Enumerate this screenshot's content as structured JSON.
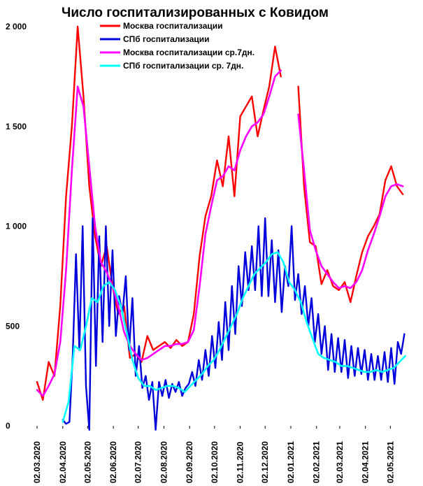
{
  "chart_data": {
    "type": "line",
    "title": "Число госпитализированных с Ковидом",
    "ylim": [
      0,
      2000
    ],
    "y_ticks": [
      {
        "value": 0,
        "label": "0"
      },
      {
        "value": 500,
        "label": "500"
      },
      {
        "value": 1000,
        "label": "1 000"
      },
      {
        "value": 1500,
        "label": "1 500"
      },
      {
        "value": 2000,
        "label": "2 000"
      }
    ],
    "x_ticks": [
      "02.03.2020",
      "02.04.2020",
      "02.05.2020",
      "02.06.2020",
      "02.07.2020",
      "02.08.2020",
      "02.09.2020",
      "02.10.2020",
      "02.11.2020",
      "02.12.2020",
      "02.01.2021",
      "02.02.2021",
      "02.03.2021",
      "02.04.2021",
      "02.05.2021"
    ],
    "grid": false,
    "legend_position": "top",
    "series": [
      {
        "name": "Москва госпитализации",
        "color": "#ff0000",
        "x": [
          "02.03.2020",
          "09.03.2020",
          "16.03.2020",
          "23.03.2020",
          "30.03.2020",
          "06.04.2020",
          "13.04.2020",
          "20.04.2020",
          "27.04.2020",
          "04.05.2020",
          "11.05.2020",
          "18.05.2020",
          "25.05.2020",
          "01.06.2020",
          "08.06.2020",
          "15.06.2020",
          "22.06.2020",
          "29.06.2020",
          "06.07.2020",
          "13.07.2020",
          "20.07.2020",
          "27.07.2020",
          "03.08.2020",
          "10.08.2020",
          "17.08.2020",
          "24.08.2020",
          "31.08.2020",
          "07.09.2020",
          "14.09.2020",
          "21.09.2020",
          "28.09.2020",
          "05.10.2020",
          "12.10.2020",
          "19.10.2020",
          "26.10.2020",
          "02.11.2020",
          "09.11.2020",
          "16.11.2020",
          "23.11.2020",
          "30.11.2020",
          "07.12.2020",
          "14.12.2020",
          "21.12.2020",
          "28.12.2020",
          "04.01.2021",
          "11.01.2021",
          "18.01.2021",
          "25.01.2021",
          "01.02.2021",
          "08.02.2021",
          "15.02.2021",
          "22.02.2021",
          "01.03.2021",
          "08.03.2021",
          "15.03.2021",
          "22.03.2021",
          "29.03.2021",
          "05.04.2021",
          "12.04.2021",
          "19.04.2021",
          "26.04.2021",
          "03.05.2021",
          "10.05.2021",
          "17.05.2021"
        ],
        "values": [
          220,
          130,
          320,
          250,
          600,
          1150,
          1500,
          2000,
          1650,
          1200,
          950,
          800,
          900,
          700,
          560,
          600,
          340,
          360,
          320,
          450,
          380,
          400,
          420,
          390,
          430,
          400,
          420,
          560,
          850,
          1050,
          1150,
          1330,
          1200,
          1450,
          1150,
          1550,
          1600,
          1650,
          1450,
          1580,
          1700,
          1900,
          1750,
          null,
          null,
          1700,
          1200,
          920,
          900,
          710,
          780,
          700,
          680,
          720,
          620,
          750,
          870,
          950,
          1000,
          1060,
          1230,
          1300,
          1200,
          1160
        ],
        "smoothed": false
      },
      {
        "name": "СПб госпитализации",
        "color": "#0000dd",
        "x": [
          "02.04.2020",
          "06.04.2020",
          "10.04.2020",
          "14.04.2020",
          "18.04.2020",
          "22.04.2020",
          "26.04.2020",
          "30.04.2020",
          "04.05.2020",
          "08.05.2020",
          "12.05.2020",
          "16.05.2020",
          "20.05.2020",
          "24.05.2020",
          "28.05.2020",
          "01.06.2020",
          "05.06.2020",
          "09.06.2020",
          "13.06.2020",
          "17.06.2020",
          "21.06.2020",
          "25.06.2020",
          "29.06.2020",
          "03.07.2020",
          "07.07.2020",
          "11.07.2020",
          "15.07.2020",
          "19.07.2020",
          "23.07.2020",
          "27.07.2020",
          "31.07.2020",
          "04.08.2020",
          "08.08.2020",
          "12.08.2020",
          "16.08.2020",
          "20.08.2020",
          "24.08.2020",
          "28.08.2020",
          "01.09.2020",
          "05.09.2020",
          "09.09.2020",
          "13.09.2020",
          "17.09.2020",
          "21.09.2020",
          "25.09.2020",
          "29.09.2020",
          "03.10.2020",
          "07.10.2020",
          "11.10.2020",
          "15.10.2020",
          "19.10.2020",
          "23.10.2020",
          "27.10.2020",
          "31.10.2020",
          "04.11.2020",
          "08.11.2020",
          "12.11.2020",
          "16.11.2020",
          "20.11.2020",
          "24.11.2020",
          "28.11.2020",
          "02.12.2020",
          "06.12.2020",
          "10.12.2020",
          "14.12.2020",
          "18.12.2020",
          "22.12.2020",
          "26.12.2020",
          "30.12.2020",
          "03.01.2021",
          "07.01.2021",
          "11.01.2021",
          "15.01.2021",
          "19.01.2021",
          "23.01.2021",
          "27.01.2021",
          "31.01.2021",
          "04.02.2021",
          "08.02.2021",
          "12.02.2021",
          "16.02.2021",
          "20.02.2021",
          "24.02.2021",
          "28.02.2021",
          "04.03.2021",
          "08.03.2021",
          "12.03.2021",
          "16.03.2021",
          "20.03.2021",
          "24.03.2021",
          "28.03.2021",
          "01.04.2021",
          "05.04.2021",
          "09.04.2021",
          "13.04.2021",
          "17.04.2021",
          "21.04.2021",
          "25.04.2021",
          "29.04.2021",
          "03.05.2021",
          "07.05.2021",
          "11.05.2021",
          "15.05.2021",
          "19.05.2021"
        ],
        "values": [
          30,
          10,
          20,
          350,
          860,
          380,
          1000,
          200,
          -20,
          1040,
          300,
          950,
          420,
          1000,
          500,
          880,
          450,
          650,
          560,
          750,
          380,
          640,
          250,
          400,
          190,
          250,
          130,
          220,
          -20,
          220,
          150,
          230,
          140,
          210,
          170,
          220,
          150,
          190,
          210,
          270,
          200,
          330,
          230,
          380,
          250,
          450,
          290,
          520,
          330,
          620,
          380,
          700,
          460,
          800,
          600,
          870,
          680,
          900,
          680,
          1000,
          650,
          1040,
          650,
          930,
          620,
          880,
          570,
          800,
          700,
          1000,
          630,
          760,
          560,
          700,
          500,
          640,
          420,
          560,
          360,
          500,
          280,
          460,
          270,
          440,
          270,
          430,
          240,
          400,
          250,
          390,
          260,
          380,
          230,
          360,
          230,
          350,
          230,
          370,
          220,
          390,
          210,
          420,
          360,
          460
        ],
        "smoothed": false
      },
      {
        "name": "Москва госпитализации ср.7дн.",
        "color": "#ff00ff",
        "x": [
          "02.03.2020",
          "09.03.2020",
          "16.03.2020",
          "23.03.2020",
          "30.03.2020",
          "06.04.2020",
          "13.04.2020",
          "20.04.2020",
          "27.04.2020",
          "04.05.2020",
          "11.05.2020",
          "18.05.2020",
          "25.05.2020",
          "01.06.2020",
          "08.06.2020",
          "15.06.2020",
          "22.06.2020",
          "29.06.2020",
          "06.07.2020",
          "13.07.2020",
          "20.07.2020",
          "27.07.2020",
          "03.08.2020",
          "10.08.2020",
          "17.08.2020",
          "24.08.2020",
          "31.08.2020",
          "07.09.2020",
          "14.09.2020",
          "21.09.2020",
          "28.09.2020",
          "05.10.2020",
          "12.10.2020",
          "19.10.2020",
          "26.10.2020",
          "02.11.2020",
          "09.11.2020",
          "16.11.2020",
          "23.11.2020",
          "30.11.2020",
          "07.12.2020",
          "14.12.2020",
          "21.12.2020",
          "28.12.2020",
          "04.01.2021",
          "11.01.2021",
          "18.01.2021",
          "25.01.2021",
          "01.02.2021",
          "08.02.2021",
          "15.02.2021",
          "22.02.2021",
          "01.03.2021",
          "08.03.2021",
          "15.03.2021",
          "22.03.2021",
          "29.03.2021",
          "05.04.2021",
          "12.04.2021",
          "19.04.2021",
          "26.04.2021",
          "03.05.2021",
          "10.05.2021",
          "17.05.2021"
        ],
        "values": [
          180,
          150,
          200,
          260,
          420,
          780,
          1280,
          1700,
          1600,
          1300,
          1000,
          820,
          770,
          700,
          600,
          470,
          400,
          360,
          330,
          340,
          360,
          380,
          400,
          400,
          410,
          410,
          420,
          480,
          700,
          960,
          1100,
          1230,
          1250,
          1300,
          1280,
          1380,
          1450,
          1500,
          1520,
          1560,
          1650,
          1750,
          1780,
          null,
          null,
          1560,
          1280,
          980,
          880,
          800,
          760,
          720,
          690,
          700,
          690,
          720,
          780,
          880,
          960,
          1050,
          1150,
          1200,
          1210,
          1200
        ],
        "smoothed": true
      },
      {
        "name": "СПб госпитализации ср. 7дн.",
        "color": "#00ffff",
        "x": [
          "02.04.2020",
          "09.04.2020",
          "16.04.2020",
          "23.04.2020",
          "30.04.2020",
          "07.05.2020",
          "14.05.2020",
          "21.05.2020",
          "28.05.2020",
          "04.06.2020",
          "11.06.2020",
          "18.06.2020",
          "25.06.2020",
          "02.07.2020",
          "09.07.2020",
          "16.07.2020",
          "23.07.2020",
          "30.07.2020",
          "06.08.2020",
          "13.08.2020",
          "20.08.2020",
          "27.08.2020",
          "03.09.2020",
          "10.09.2020",
          "17.09.2020",
          "24.09.2020",
          "01.10.2020",
          "08.10.2020",
          "15.10.2020",
          "22.10.2020",
          "29.10.2020",
          "05.11.2020",
          "12.11.2020",
          "19.11.2020",
          "26.11.2020",
          "03.12.2020",
          "10.12.2020",
          "17.12.2020",
          "24.12.2020",
          "31.12.2020",
          "07.01.2021",
          "14.01.2021",
          "21.01.2021",
          "28.01.2021",
          "04.02.2021",
          "11.02.2021",
          "18.02.2021",
          "25.02.2021",
          "04.03.2021",
          "11.03.2021",
          "18.03.2021",
          "25.03.2021",
          "01.04.2021",
          "08.04.2021",
          "15.04.2021",
          "22.04.2021",
          "29.04.2021",
          "06.05.2021",
          "13.05.2021",
          "20.05.2021"
        ],
        "values": [
          20,
          120,
          400,
          380,
          500,
          640,
          620,
          700,
          720,
          680,
          600,
          470,
          330,
          240,
          200,
          200,
          180,
          190,
          200,
          200,
          190,
          170,
          200,
          230,
          260,
          300,
          330,
          380,
          440,
          500,
          560,
          640,
          700,
          760,
          790,
          820,
          860,
          870,
          820,
          720,
          680,
          620,
          520,
          440,
          360,
          340,
          330,
          320,
          300,
          300,
          290,
          280,
          270,
          270,
          280,
          270,
          280,
          290,
          320,
          350
        ],
        "smoothed": true
      }
    ]
  }
}
